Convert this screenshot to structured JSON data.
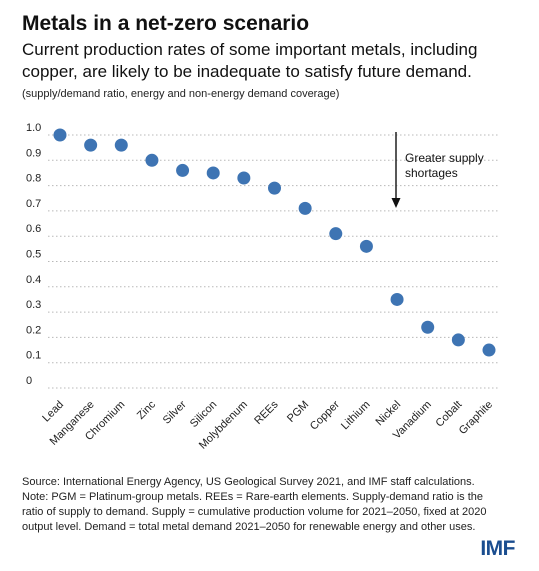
{
  "header": {
    "title": "Metals in a net-zero scenario",
    "subtitle": "Current production rates of some important metals, including copper, are likely to be inadequate to satisfy future demand.",
    "units": "(supply/demand ratio, energy and non-energy demand coverage)"
  },
  "chart_data": {
    "type": "scatter",
    "categories": [
      "Lead",
      "Manganese",
      "Chromium",
      "Zinc",
      "Silver",
      "Silicon",
      "Molybdenum",
      "REEs",
      "PGM",
      "Copper",
      "Lithium",
      "Nickel",
      "Vanadium",
      "Cobalt",
      "Graphite"
    ],
    "values": [
      1.0,
      0.96,
      0.96,
      0.9,
      0.86,
      0.85,
      0.83,
      0.79,
      0.71,
      0.61,
      0.56,
      0.35,
      0.24,
      0.19,
      0.15
    ],
    "yticks": [
      "0",
      "0.1",
      "0.2",
      "0.3",
      "0.4",
      "0.5",
      "0.6",
      "0.7",
      "0.8",
      "0.9",
      "1.0"
    ],
    "ylim": [
      0,
      1.0
    ],
    "grid": "horizontal-dotted",
    "point_color": "#3e74b3",
    "annotation": {
      "lines": [
        "Greater supply",
        "shortages"
      ],
      "arrow": "down"
    }
  },
  "footnotes": {
    "source": "Source: International Energy Agency, US Geological Survey 2021, and IMF staff calculations.",
    "note_lines": [
      "Note: PGM = Platinum-group metals. REEs = Rare-earth elements. Supply-demand ratio is the",
      "ratio of supply to demand. Supply = cumulative production volume for 2021–2050, fixed at 2020",
      "output level. Demand = total metal demand 2021–2050 for renewable energy and other uses."
    ]
  },
  "logo": {
    "text": "IMF",
    "color": "#1a4d8f"
  }
}
